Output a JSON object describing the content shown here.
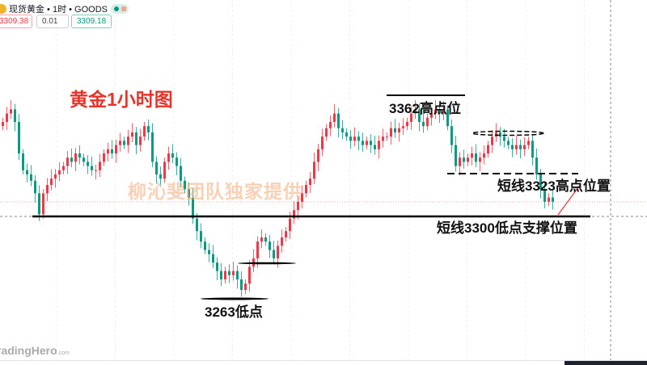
{
  "header": {
    "symbol": "现货黄金 • 1时 • GOODS",
    "bid": "3309.38",
    "spread": "0.01",
    "ask": "3309.18"
  },
  "annotations": {
    "title": "黄金1小时图",
    "watermark": "柳沁斐团队独家提供",
    "high_label": "3362高点位",
    "short_high_label": "短线3323高点位置",
    "support_label": "短线3300低点支撑位置",
    "low_label": "3263低点"
  },
  "logo": {
    "text": "radingHero",
    "suffix": ".com"
  },
  "colors": {
    "up": "#f23645",
    "down": "#089981",
    "annotation_title": "#e8332a",
    "current_price_line": "#f7a1a8"
  },
  "chart_data": {
    "type": "candlestick",
    "timeframe": "1时",
    "current_price": 3309,
    "levels": {
      "support": 3300,
      "short_high": 3323,
      "high": 3362,
      "low": 3263
    },
    "closes": [
      3345,
      3349,
      3351,
      3345,
      3330,
      3322,
      3320,
      3317,
      3311,
      3301,
      3311,
      3315,
      3318,
      3320,
      3322,
      3324,
      3328,
      3326,
      3330,
      3328,
      3326,
      3324,
      3322,
      3322,
      3326,
      3330,
      3332,
      3330,
      3334,
      3336,
      3334,
      3338,
      3340,
      3334,
      3338,
      3343,
      3340,
      3326,
      3320,
      3318,
      3326,
      3330,
      3328,
      3324,
      3317,
      3313,
      3309,
      3299,
      3293,
      3288,
      3284,
      3282,
      3278,
      3274,
      3270,
      3274,
      3272,
      3274,
      3270,
      3265,
      3268,
      3276,
      3280,
      3288,
      3290,
      3288,
      3284,
      3280,
      3286,
      3290,
      3293,
      3299,
      3303,
      3307,
      3311,
      3315,
      3318,
      3326,
      3332,
      3338,
      3342,
      3345,
      3349,
      3342,
      3340,
      3338,
      3336,
      3338,
      3336,
      3334,
      3336,
      3334,
      3332,
      3336,
      3338,
      3338,
      3342,
      3340,
      3342,
      3343,
      3345,
      3349,
      3351,
      3345,
      3343,
      3347,
      3349,
      3351,
      3349,
      3351,
      3343,
      3334,
      3324,
      3328,
      3326,
      3328,
      3330,
      3326,
      3328,
      3330,
      3334,
      3338,
      3340,
      3338,
      3336,
      3334,
      3332,
      3334,
      3332,
      3334,
      3336,
      3328,
      3320,
      3313,
      3307,
      3309,
      3307
    ],
    "grid": true
  }
}
